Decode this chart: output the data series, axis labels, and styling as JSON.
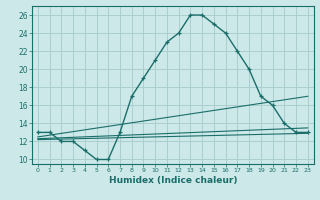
{
  "xlabel": "Humidex (Indice chaleur)",
  "bg_color": "#cce8e8",
  "grid_color": "#aacfcf",
  "line_color": "#1a6e6a",
  "xlim": [
    -0.5,
    23.5
  ],
  "ylim": [
    9.5,
    27
  ],
  "xticks": [
    0,
    1,
    2,
    3,
    4,
    5,
    6,
    7,
    8,
    9,
    10,
    11,
    12,
    13,
    14,
    15,
    16,
    17,
    18,
    19,
    20,
    21,
    22,
    23
  ],
  "yticks": [
    10,
    12,
    14,
    16,
    18,
    20,
    22,
    24,
    26
  ],
  "main_x": [
    0,
    1,
    2,
    3,
    4,
    5,
    6,
    7,
    8,
    9,
    10,
    11,
    12,
    13,
    14,
    15,
    16,
    17,
    18,
    19,
    20,
    21,
    22,
    23
  ],
  "main_y": [
    13,
    13,
    12,
    12,
    11,
    10,
    10,
    13,
    17,
    19,
    21,
    23,
    24,
    26,
    26,
    25,
    24,
    22,
    20,
    17,
    16,
    14,
    13,
    13
  ],
  "line1_x": [
    0,
    23
  ],
  "line1_y": [
    12.5,
    17.0
  ],
  "line2_x": [
    0,
    23
  ],
  "line2_y": [
    12.3,
    13.5
  ],
  "line3_x": [
    0,
    23
  ],
  "line3_y": [
    12.2,
    12.9
  ]
}
